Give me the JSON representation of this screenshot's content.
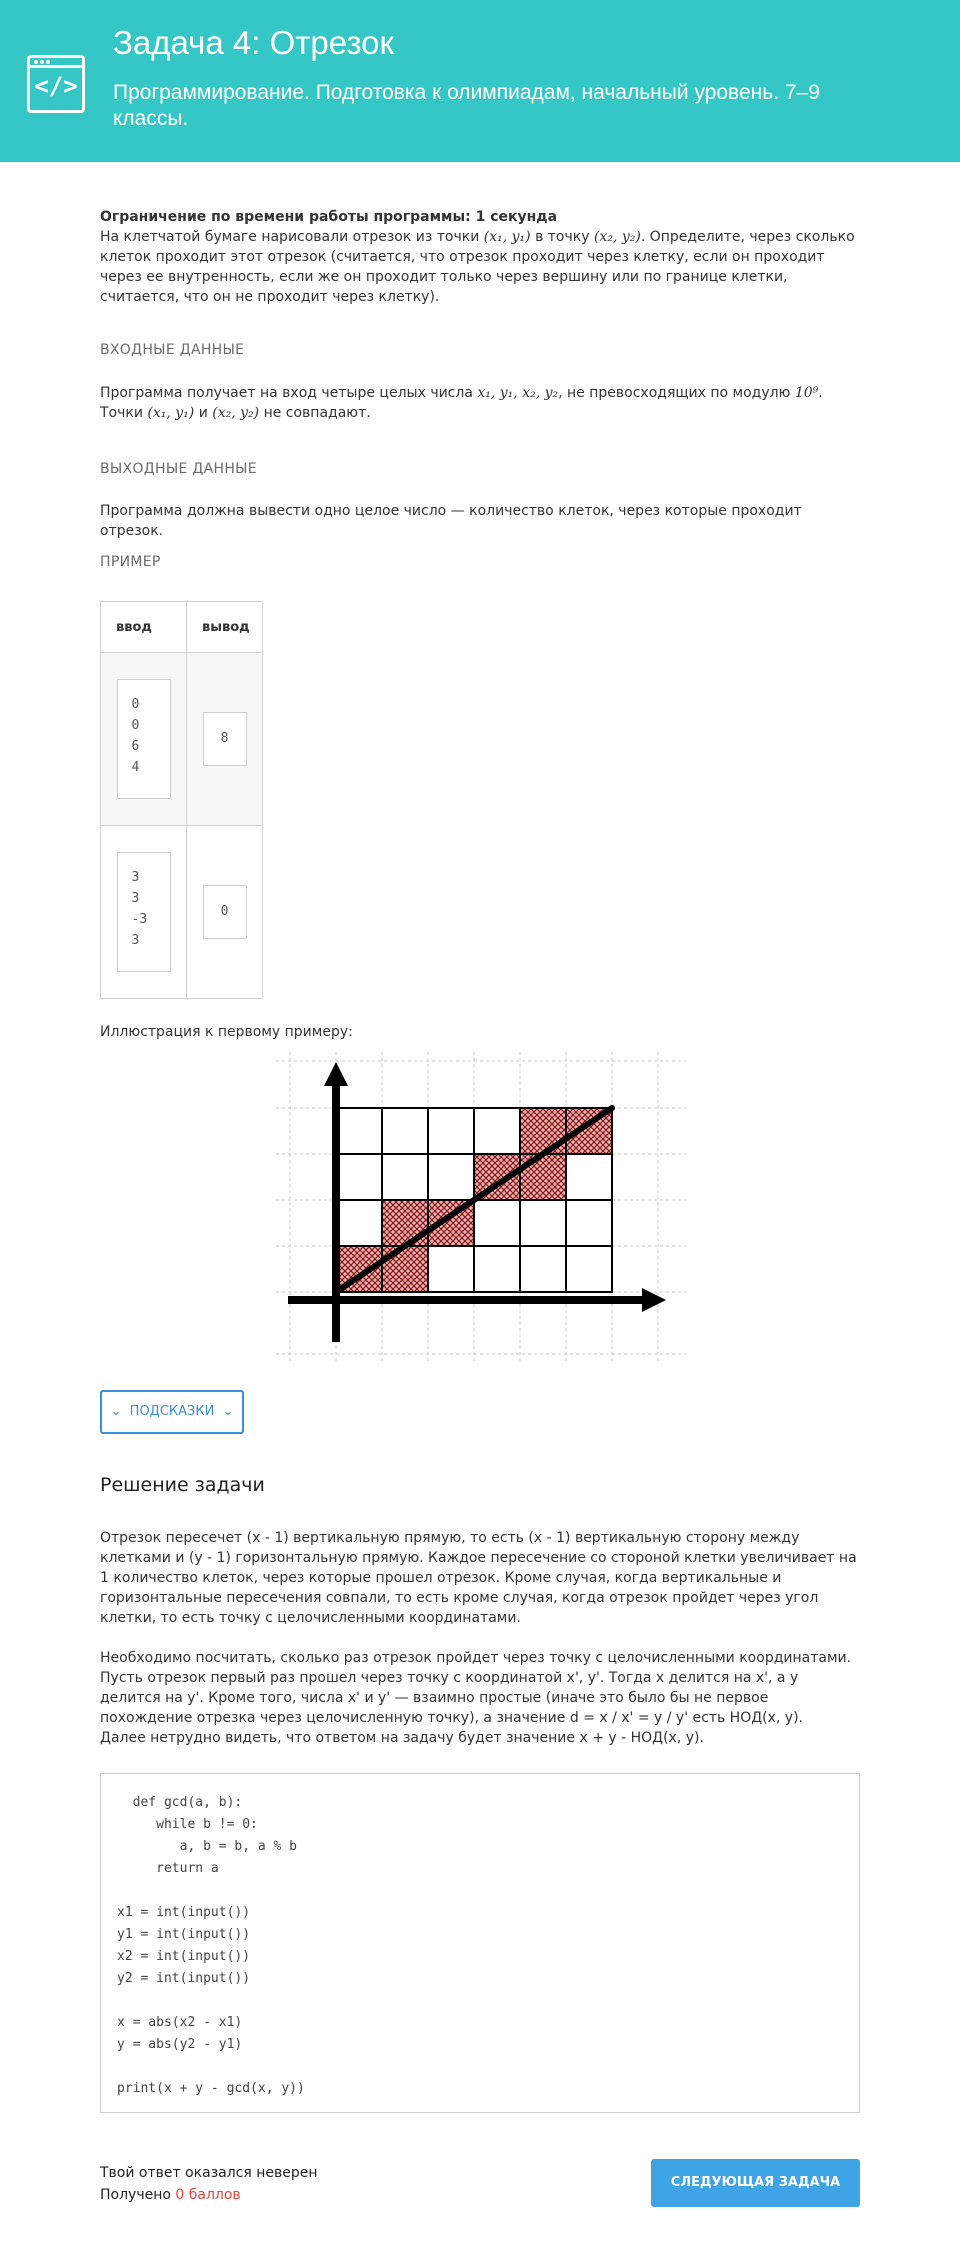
{
  "header": {
    "title": "Задача 4: Отрезок",
    "subtitle": "Программирование. Подготовка к олимпиадам, начальный уровень. 7–9 классы.",
    "logo_icon": "code-window-icon",
    "bg_color": "#35c6c6"
  },
  "statement": {
    "time_limit": "Ограничение по времени работы программы: 1 секунда",
    "text_a": "На клетчатой бумаге нарисовали отрезок из точки ",
    "point1": "(x₁, y₁)",
    "text_b": " в точку ",
    "point2": "(x₂, y₂)",
    "text_c": ". Определите, через сколько клеток проходит этот отрезок (считается, что отрезок проходит через клетку, если он проходит через ее внутренность, если же он проходит только через вершину или по границе клетки, считается, что он не проходит через клетку)."
  },
  "input_section": {
    "title": "Входные данные",
    "text_a": "Программа получает на вход четыре целых числа ",
    "vars": "x₁, y₁, x₂, y₂",
    "text_b": ", не превосходящих по модулю ",
    "limit": "10⁹",
    "text_c": ". Точки ",
    "p1": "(x₁, y₁)",
    "text_d": " и ",
    "p2": "(x₂, y₂)",
    "text_e": " не совпадают."
  },
  "output_section": {
    "title": "Выходные данные",
    "text": "Программа должна вывести одно целое число — количество клеток, через которые проходит отрезок."
  },
  "example_section": {
    "title": "Пример",
    "col_input": "ввод",
    "col_output": "вывод",
    "rows": [
      {
        "input": "0\n0\n6\n4",
        "output": "8"
      },
      {
        "input": "3\n3\n-3\n3",
        "output": "0"
      }
    ]
  },
  "illustration_caption": "Иллюстрация к первому примеру:",
  "hint_button": "Подсказки",
  "solution": {
    "title": "Решение задачи",
    "para1": "Отрезок пересечет (x - 1) вертикальную прямую, то есть (x - 1) вертикальную сторону между клетками и (y - 1) горизонтальную прямую. Каждое пересечение со стороной клетки увеличивает на 1 количество клеток, через которые прошел отрезок. Кроме случая, когда вертикальные и горизонтальные пересечения совпали, то есть кроме случая, когда отрезок пройдет через угол клетки, то есть точку с целочисленными координатами.",
    "para2": "Необходимо посчитать, сколько раз отрезок пройдет через точку с целочисленными координатами. Пусть отрезок первый раз прошел через точку с координатой x', y'. Тогда x делится на x', а y делится на y'. Кроме того, числа x' и y' — взаимно простые (иначе это было бы не первое похождение отрезка через целочисленную точку), а значение d = x / x' = y / y' есть НОД(x, y).",
    "para3": "Далее нетрудно видеть, что ответом на задачу будет значение x + y - НОД(x, y).",
    "code": "  def gcd(a, b):\n     while b != 0:\n        a, b = b, a % b\n     return a\n\nx1 = int(input())\ny1 = int(input())\nx2 = int(input())\ny2 = int(input())\n\nx = abs(x2 - x1)\ny = abs(y2 - y1)\n\nprint(x + y - gcd(x, y))"
  },
  "result": {
    "message": "Твой ответ оказался неверен",
    "got_label": "Получено ",
    "score": "0 баллов"
  },
  "next_button": "Следующая задача"
}
